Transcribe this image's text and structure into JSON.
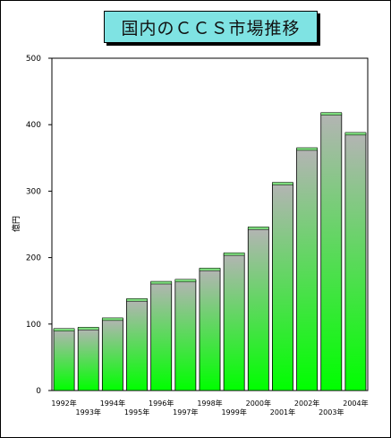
{
  "chart_data": {
    "type": "bar",
    "title": "国内のＣＣＳ市場推移",
    "ylabel": "億円",
    "xlabel": "",
    "ylim": [
      0,
      500
    ],
    "yticks": [
      "0",
      "100",
      "200",
      "300",
      "400",
      "500"
    ],
    "categories": [
      "1992年",
      "1993年",
      "1994年",
      "1995年",
      "1996年",
      "1997年",
      "1998年",
      "1999年",
      "2000年",
      "2001年",
      "2002年",
      "2003年",
      "2004年"
    ],
    "values": [
      92,
      94,
      108,
      137,
      163,
      166,
      183,
      206,
      245,
      312,
      364,
      417,
      387
    ],
    "grid": false,
    "legend": "none",
    "colors": {
      "bar_top": "#b4b4b4",
      "bar_bottom": "#00ff00",
      "bar_cap": "#7ddc7d",
      "title_bg": "#7fe3e3"
    }
  }
}
